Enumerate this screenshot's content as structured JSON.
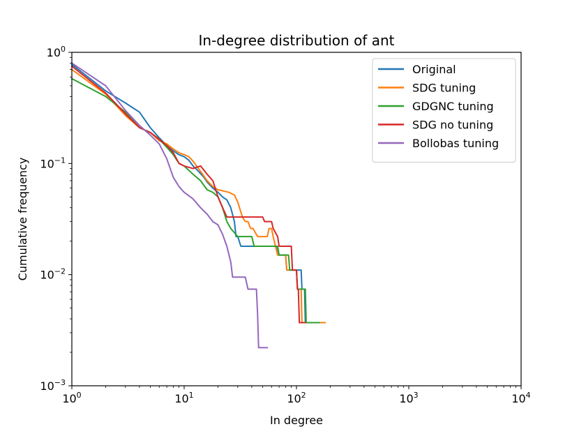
{
  "chart_data": {
    "type": "line",
    "title": "In-degree distribution of ant",
    "xlabel": "In degree",
    "ylabel": "Cumulative frequency",
    "xscale": "log",
    "yscale": "log",
    "xlim": [
      1,
      10000
    ],
    "ylim": [
      0.001,
      1
    ],
    "legend_position": "top-right",
    "x_ticks": [
      {
        "value": 1,
        "base": "10",
        "exp": "0"
      },
      {
        "value": 10,
        "base": "10",
        "exp": "1"
      },
      {
        "value": 100,
        "base": "10",
        "exp": "2"
      },
      {
        "value": 1000,
        "base": "10",
        "exp": "3"
      },
      {
        "value": 10000,
        "base": "10",
        "exp": "4"
      }
    ],
    "y_ticks": [
      {
        "value": 0.001,
        "base": "10",
        "exp": "−3"
      },
      {
        "value": 0.01,
        "base": "10",
        "exp": "−2"
      },
      {
        "value": 0.1,
        "base": "10",
        "exp": "−1"
      },
      {
        "value": 1,
        "base": "10",
        "exp": "0"
      }
    ],
    "series": [
      {
        "name": "Original",
        "color": "#1f77b4",
        "points": [
          [
            1,
            0.78
          ],
          [
            2,
            0.45
          ],
          [
            3,
            0.35
          ],
          [
            4,
            0.29
          ],
          [
            5,
            0.21
          ],
          [
            6,
            0.17
          ],
          [
            7,
            0.145
          ],
          [
            8,
            0.13
          ],
          [
            9,
            0.12
          ],
          [
            10,
            0.115
          ],
          [
            11,
            0.107
          ],
          [
            12,
            0.095
          ],
          [
            13,
            0.088
          ],
          [
            15,
            0.075
          ],
          [
            16,
            0.068
          ],
          [
            18,
            0.06
          ],
          [
            20,
            0.055
          ],
          [
            22,
            0.05
          ],
          [
            24,
            0.047
          ],
          [
            26,
            0.04
          ],
          [
            28,
            0.03
          ],
          [
            29,
            0.022
          ],
          [
            30,
            0.022
          ],
          [
            32,
            0.018
          ],
          [
            45,
            0.018
          ],
          [
            66,
            0.018
          ],
          [
            68,
            0.015
          ],
          [
            80,
            0.015
          ],
          [
            82,
            0.011
          ],
          [
            110,
            0.011
          ],
          [
            112,
            0.0074
          ],
          [
            118,
            0.0074
          ],
          [
            120,
            0.0037
          ],
          [
            130,
            0.0037
          ]
        ]
      },
      {
        "name": "SDG tuning",
        "color": "#ff7f0e",
        "points": [
          [
            1,
            0.7
          ],
          [
            2,
            0.42
          ],
          [
            3,
            0.27
          ],
          [
            4,
            0.21
          ],
          [
            5,
            0.19
          ],
          [
            6,
            0.16
          ],
          [
            7,
            0.15
          ],
          [
            8,
            0.135
          ],
          [
            9,
            0.125
          ],
          [
            10,
            0.12
          ],
          [
            11,
            0.115
          ],
          [
            12,
            0.105
          ],
          [
            14,
            0.085
          ],
          [
            16,
            0.07
          ],
          [
            18,
            0.062
          ],
          [
            20,
            0.058
          ],
          [
            25,
            0.055
          ],
          [
            28,
            0.052
          ],
          [
            30,
            0.045
          ],
          [
            33,
            0.033
          ],
          [
            35,
            0.03
          ],
          [
            37,
            0.03
          ],
          [
            39,
            0.026
          ],
          [
            41,
            0.026
          ],
          [
            45,
            0.022
          ],
          [
            55,
            0.022
          ],
          [
            57,
            0.026
          ],
          [
            60,
            0.026
          ],
          [
            62,
            0.022
          ],
          [
            68,
            0.015
          ],
          [
            80,
            0.015
          ],
          [
            82,
            0.011
          ],
          [
            100,
            0.011
          ],
          [
            102,
            0.0074
          ],
          [
            110,
            0.0074
          ],
          [
            112,
            0.0037
          ],
          [
            180,
            0.0037
          ]
        ]
      },
      {
        "name": "GDGNC tuning",
        "color": "#2ca02c",
        "points": [
          [
            1,
            0.58
          ],
          [
            2,
            0.4
          ],
          [
            3,
            0.29
          ],
          [
            4,
            0.21
          ],
          [
            5,
            0.19
          ],
          [
            6,
            0.165
          ],
          [
            7,
            0.14
          ],
          [
            8,
            0.12
          ],
          [
            9,
            0.1
          ],
          [
            10,
            0.095
          ],
          [
            12,
            0.08
          ],
          [
            14,
            0.07
          ],
          [
            16,
            0.058
          ],
          [
            18,
            0.055
          ],
          [
            20,
            0.05
          ],
          [
            22,
            0.04
          ],
          [
            24,
            0.03
          ],
          [
            26,
            0.026
          ],
          [
            30,
            0.022
          ],
          [
            40,
            0.022
          ],
          [
            42,
            0.018
          ],
          [
            68,
            0.018
          ],
          [
            70,
            0.015
          ],
          [
            85,
            0.015
          ],
          [
            87,
            0.011
          ],
          [
            100,
            0.011
          ],
          [
            102,
            0.0074
          ],
          [
            120,
            0.0074
          ],
          [
            122,
            0.0037
          ],
          [
            160,
            0.0037
          ]
        ]
      },
      {
        "name": "SDG no tuning",
        "color": "#d62728",
        "points": [
          [
            1,
            0.75
          ],
          [
            2,
            0.43
          ],
          [
            3,
            0.28
          ],
          [
            4,
            0.21
          ],
          [
            5,
            0.19
          ],
          [
            6,
            0.165
          ],
          [
            7,
            0.145
          ],
          [
            8,
            0.125
          ],
          [
            9,
            0.1
          ],
          [
            10,
            0.095
          ],
          [
            12,
            0.09
          ],
          [
            14,
            0.095
          ],
          [
            16,
            0.08
          ],
          [
            18,
            0.07
          ],
          [
            20,
            0.05
          ],
          [
            22,
            0.04
          ],
          [
            24,
            0.033
          ],
          [
            26,
            0.033
          ],
          [
            50,
            0.033
          ],
          [
            52,
            0.03
          ],
          [
            60,
            0.03
          ],
          [
            62,
            0.026
          ],
          [
            68,
            0.022
          ],
          [
            70,
            0.018
          ],
          [
            90,
            0.018
          ],
          [
            92,
            0.011
          ],
          [
            100,
            0.011
          ],
          [
            102,
            0.0074
          ],
          [
            104,
            0.0074
          ],
          [
            106,
            0.0037
          ],
          [
            120,
            0.0037
          ]
        ]
      },
      {
        "name": "Bollobas tuning",
        "color": "#9467bd",
        "points": [
          [
            1,
            0.8
          ],
          [
            2,
            0.5
          ],
          [
            3,
            0.3
          ],
          [
            4,
            0.22
          ],
          [
            5,
            0.18
          ],
          [
            6,
            0.15
          ],
          [
            7,
            0.11
          ],
          [
            8,
            0.075
          ],
          [
            9,
            0.062
          ],
          [
            10,
            0.055
          ],
          [
            12,
            0.048
          ],
          [
            14,
            0.04
          ],
          [
            16,
            0.035
          ],
          [
            18,
            0.03
          ],
          [
            20,
            0.028
          ],
          [
            22,
            0.023
          ],
          [
            24,
            0.018
          ],
          [
            26,
            0.013
          ],
          [
            27,
            0.0095
          ],
          [
            35,
            0.0095
          ],
          [
            37,
            0.0074
          ],
          [
            44,
            0.0074
          ],
          [
            45,
            0.0045
          ],
          [
            46,
            0.0022
          ],
          [
            55,
            0.0022
          ]
        ]
      }
    ]
  }
}
